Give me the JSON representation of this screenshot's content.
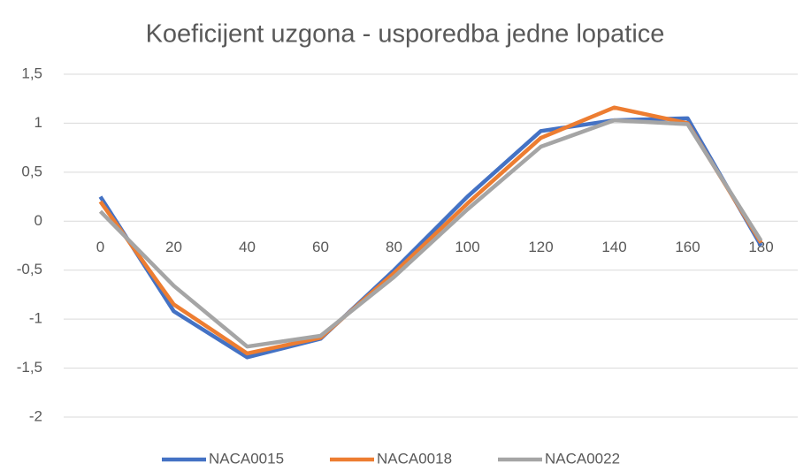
{
  "chart_data": {
    "type": "line",
    "title": "Koeficijent uzgona - usporedba jedne lopatice",
    "categories": [
      "0",
      "20",
      "40",
      "60",
      "80",
      "100",
      "120",
      "140",
      "160",
      "180"
    ],
    "series": [
      {
        "name": "NACA0015",
        "color": "#4472c4",
        "values": [
          0.25,
          -0.92,
          -1.39,
          -1.2,
          -0.5,
          0.25,
          0.92,
          1.03,
          1.05,
          -0.25
        ]
      },
      {
        "name": "NACA0018",
        "color": "#ed7d31",
        "values": [
          0.2,
          -0.85,
          -1.35,
          -1.19,
          -0.53,
          0.18,
          0.85,
          1.16,
          1.0,
          -0.22
        ]
      },
      {
        "name": "NACA0022",
        "color": "#a5a5a5",
        "values": [
          0.1,
          -0.66,
          -1.28,
          -1.17,
          -0.57,
          0.12,
          0.76,
          1.03,
          0.99,
          -0.2
        ]
      }
    ],
    "ylim": [
      -2,
      1.5
    ],
    "yticks": [
      -2,
      {
        "value": -1.5,
        "label": "-1,5"
      },
      -1,
      {
        "value": -0.5,
        "label": "-0,5"
      },
      0,
      {
        "value": 0.5,
        "label": "0,5"
      },
      1,
      {
        "value": 1.5,
        "label": "1,5"
      }
    ],
    "grid": true,
    "legend": "bottom"
  }
}
